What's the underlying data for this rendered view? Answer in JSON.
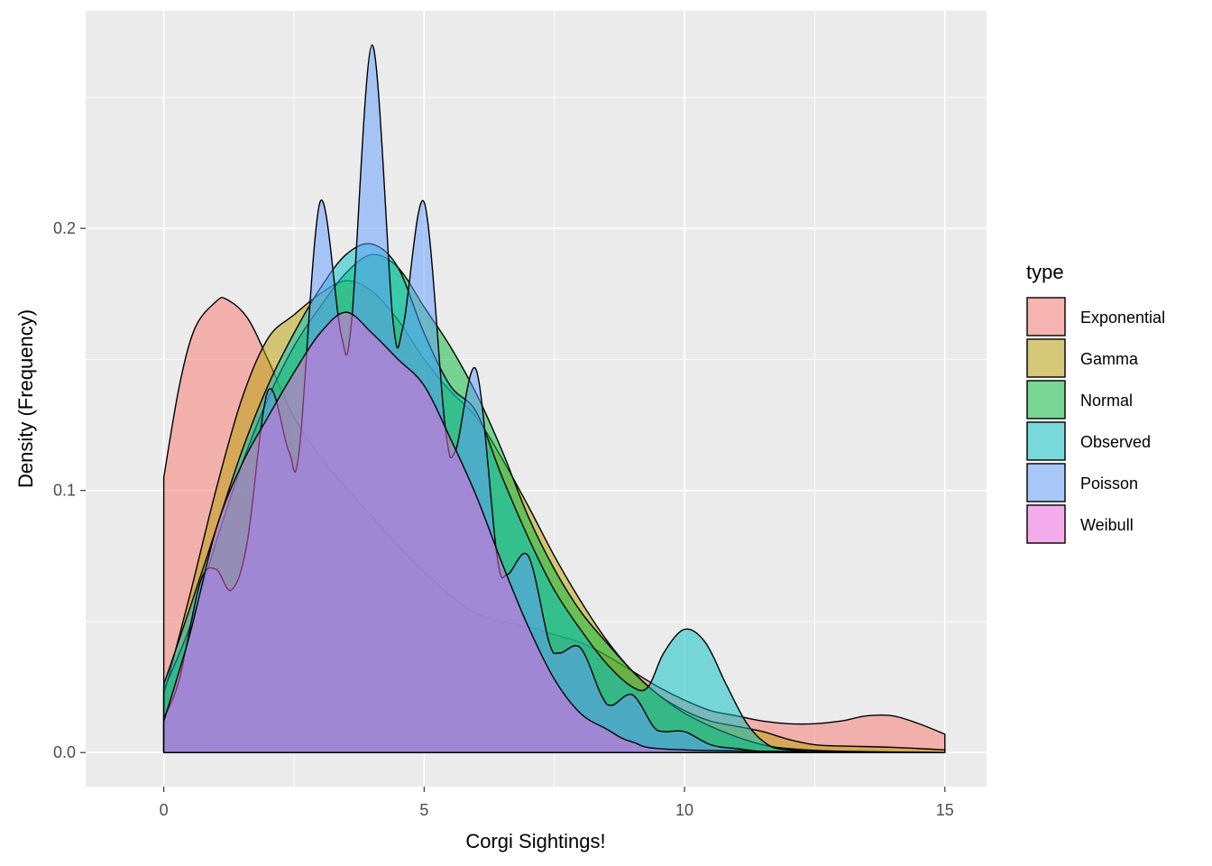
{
  "chart_data": {
    "type": "area",
    "xlabel": "Corgi Sightings!",
    "ylabel": "Density (Frequency)",
    "xlim": [
      -1.5,
      15.8
    ],
    "ylim": [
      -0.013,
      0.283
    ],
    "x_ticks": [
      0,
      5,
      10,
      15
    ],
    "x_tick_labels": [
      "0",
      "5",
      "10",
      "15"
    ],
    "y_ticks": [
      0.0,
      0.1,
      0.2
    ],
    "y_tick_labels": [
      "0.0",
      "0.1",
      "0.2"
    ],
    "grid": true,
    "legend_title": "type",
    "legend_position": "right",
    "series": [
      {
        "name": "Exponential",
        "color": "#F8766D",
        "points": [
          [
            0,
            0.105
          ],
          [
            0.3,
            0.14
          ],
          [
            0.6,
            0.162
          ],
          [
            1.0,
            0.172
          ],
          [
            1.2,
            0.173
          ],
          [
            1.6,
            0.166
          ],
          [
            2.0,
            0.15
          ],
          [
            2.5,
            0.128
          ],
          [
            3.0,
            0.113
          ],
          [
            3.5,
            0.101
          ],
          [
            4.0,
            0.09
          ],
          [
            4.5,
            0.079
          ],
          [
            5.0,
            0.069
          ],
          [
            5.5,
            0.06
          ],
          [
            6.0,
            0.053
          ],
          [
            6.5,
            0.05
          ],
          [
            7.0,
            0.048
          ],
          [
            7.5,
            0.045
          ],
          [
            8.0,
            0.042
          ],
          [
            8.5,
            0.037
          ],
          [
            9.0,
            0.031
          ],
          [
            9.5,
            0.025
          ],
          [
            10.0,
            0.02
          ],
          [
            10.5,
            0.016
          ],
          [
            11.0,
            0.014
          ],
          [
            11.5,
            0.012
          ],
          [
            12.0,
            0.011
          ],
          [
            12.5,
            0.011
          ],
          [
            13.0,
            0.012
          ],
          [
            13.5,
            0.014
          ],
          [
            14.0,
            0.014
          ],
          [
            14.5,
            0.011
          ],
          [
            15.0,
            0.007
          ]
        ]
      },
      {
        "name": "Gamma",
        "color": "#B79F00",
        "points": [
          [
            0,
            0.022
          ],
          [
            0.5,
            0.06
          ],
          [
            1.0,
            0.1
          ],
          [
            1.5,
            0.135
          ],
          [
            2.0,
            0.158
          ],
          [
            2.5,
            0.167
          ],
          [
            3.0,
            0.175
          ],
          [
            3.5,
            0.18
          ],
          [
            4.0,
            0.176
          ],
          [
            4.5,
            0.165
          ],
          [
            5.0,
            0.15
          ],
          [
            5.5,
            0.138
          ],
          [
            6.0,
            0.128
          ],
          [
            6.5,
            0.112
          ],
          [
            7.0,
            0.094
          ],
          [
            7.5,
            0.075
          ],
          [
            8.0,
            0.058
          ],
          [
            8.5,
            0.043
          ],
          [
            9.0,
            0.031
          ],
          [
            9.5,
            0.022
          ],
          [
            10.0,
            0.016
          ],
          [
            10.5,
            0.012
          ],
          [
            11.0,
            0.01
          ],
          [
            11.5,
            0.008
          ],
          [
            12.0,
            0.005
          ],
          [
            12.5,
            0.003
          ],
          [
            13.0,
            0.0025
          ],
          [
            14.0,
            0.002
          ],
          [
            15.0,
            0.001
          ]
        ]
      },
      {
        "name": "Normal",
        "color": "#00BA38",
        "points": [
          [
            0,
            0.024
          ],
          [
            0.5,
            0.048
          ],
          [
            1.0,
            0.08
          ],
          [
            1.5,
            0.11
          ],
          [
            2.0,
            0.135
          ],
          [
            2.5,
            0.155
          ],
          [
            3.0,
            0.17
          ],
          [
            3.5,
            0.183
          ],
          [
            4.0,
            0.19
          ],
          [
            4.5,
            0.185
          ],
          [
            5.0,
            0.17
          ],
          [
            5.5,
            0.155
          ],
          [
            6.0,
            0.137
          ],
          [
            6.5,
            0.115
          ],
          [
            7.0,
            0.09
          ],
          [
            7.5,
            0.07
          ],
          [
            8.0,
            0.054
          ],
          [
            8.5,
            0.042
          ],
          [
            9.0,
            0.031
          ],
          [
            9.5,
            0.022
          ],
          [
            10.0,
            0.015
          ],
          [
            10.5,
            0.01
          ],
          [
            11.0,
            0.006
          ],
          [
            11.5,
            0.003
          ],
          [
            12.0,
            0.0015
          ],
          [
            13.0,
            0.0005
          ],
          [
            15.0,
            0
          ]
        ]
      },
      {
        "name": "Observed",
        "color": "#00BFC4",
        "points": [
          [
            0,
            0.026
          ],
          [
            0.5,
            0.055
          ],
          [
            1.0,
            0.085
          ],
          [
            1.5,
            0.115
          ],
          [
            2.0,
            0.14
          ],
          [
            2.5,
            0.16
          ],
          [
            3.0,
            0.177
          ],
          [
            3.5,
            0.19
          ],
          [
            4.0,
            0.194
          ],
          [
            4.5,
            0.185
          ],
          [
            5.0,
            0.16
          ],
          [
            5.5,
            0.14
          ],
          [
            6.0,
            0.13
          ],
          [
            6.5,
            0.105
          ],
          [
            7.0,
            0.082
          ],
          [
            7.5,
            0.062
          ],
          [
            8.0,
            0.047
          ],
          [
            8.5,
            0.034
          ],
          [
            9.0,
            0.025
          ],
          [
            9.3,
            0.025
          ],
          [
            9.6,
            0.038
          ],
          [
            10.0,
            0.047
          ],
          [
            10.4,
            0.042
          ],
          [
            10.8,
            0.026
          ],
          [
            11.2,
            0.011
          ],
          [
            11.6,
            0.003
          ],
          [
            12.0,
            0.001
          ],
          [
            13.0,
            0
          ],
          [
            15.0,
            0
          ]
        ]
      },
      {
        "name": "Poisson",
        "color": "#619CFF",
        "points": [
          [
            0,
            0.013
          ],
          [
            0.3,
            0.028
          ],
          [
            0.7,
            0.065
          ],
          [
            1.0,
            0.07
          ],
          [
            1.3,
            0.062
          ],
          [
            1.6,
            0.08
          ],
          [
            2.0,
            0.138
          ],
          [
            2.4,
            0.115
          ],
          [
            2.6,
            0.115
          ],
          [
            3.0,
            0.21
          ],
          [
            3.4,
            0.16
          ],
          [
            3.6,
            0.163
          ],
          [
            4.0,
            0.27
          ],
          [
            4.4,
            0.165
          ],
          [
            4.6,
            0.163
          ],
          [
            5.0,
            0.21
          ],
          [
            5.4,
            0.125
          ],
          [
            5.6,
            0.115
          ],
          [
            6.0,
            0.146
          ],
          [
            6.4,
            0.075
          ],
          [
            6.6,
            0.068
          ],
          [
            7.0,
            0.075
          ],
          [
            7.4,
            0.042
          ],
          [
            7.6,
            0.038
          ],
          [
            8.0,
            0.04
          ],
          [
            8.4,
            0.022
          ],
          [
            8.6,
            0.018
          ],
          [
            9.0,
            0.022
          ],
          [
            9.4,
            0.01
          ],
          [
            9.6,
            0.008
          ],
          [
            10.0,
            0.008
          ],
          [
            10.5,
            0.003
          ],
          [
            11.0,
            0.0015
          ],
          [
            12.0,
            0
          ],
          [
            15.0,
            0
          ]
        ]
      },
      {
        "name": "Weibull",
        "color": "#F564E3",
        "points": [
          [
            0,
            0.012
          ],
          [
            0.5,
            0.045
          ],
          [
            1.0,
            0.085
          ],
          [
            1.5,
            0.11
          ],
          [
            2.0,
            0.128
          ],
          [
            2.5,
            0.145
          ],
          [
            3.0,
            0.16
          ],
          [
            3.5,
            0.168
          ],
          [
            4.0,
            0.16
          ],
          [
            4.5,
            0.15
          ],
          [
            5.0,
            0.14
          ],
          [
            5.5,
            0.12
          ],
          [
            6.0,
            0.098
          ],
          [
            6.5,
            0.072
          ],
          [
            7.0,
            0.048
          ],
          [
            7.5,
            0.028
          ],
          [
            8.0,
            0.015
          ],
          [
            8.5,
            0.009
          ],
          [
            9.0,
            0.004
          ],
          [
            10.0,
            0.001
          ],
          [
            15.0,
            0
          ]
        ]
      }
    ]
  }
}
